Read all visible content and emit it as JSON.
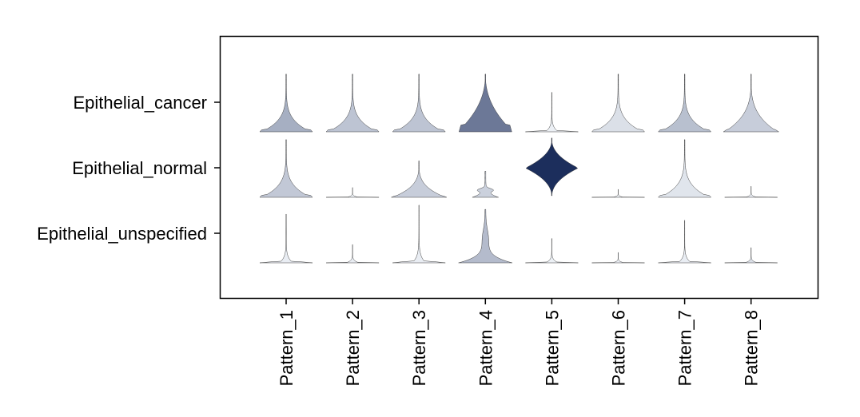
{
  "chart_data": {
    "type": "violin",
    "title": "",
    "xlabel": "",
    "ylabel": "",
    "categories": [
      "Pattern_1",
      "Pattern_2",
      "Pattern_3",
      "Pattern_4",
      "Pattern_5",
      "Pattern_6",
      "Pattern_7",
      "Pattern_8"
    ],
    "rows": [
      "Epithelial_cancer",
      "Epithelial_normal",
      "Epithelial_unspecified"
    ],
    "colorscale": {
      "low": "#f4f7fb",
      "high": "#1c2e5c"
    },
    "grid": false,
    "legend": "none",
    "cells": [
      [
        {
          "intensity": 0.3,
          "top": 0.95,
          "width_scale": 1.0,
          "shape": "spiky"
        },
        {
          "intensity": 0.2,
          "top": 0.95,
          "width_scale": 1.0,
          "shape": "spiky"
        },
        {
          "intensity": 0.2,
          "top": 0.95,
          "width_scale": 1.0,
          "shape": "spiky"
        },
        {
          "intensity": 0.58,
          "top": 0.95,
          "width_scale": 1.0,
          "shape": "fat"
        },
        {
          "intensity": 0.02,
          "top": 0.65,
          "width_scale": 1.0,
          "shape": "flat"
        },
        {
          "intensity": 0.08,
          "top": 0.95,
          "width_scale": 1.0,
          "shape": "spiky"
        },
        {
          "intensity": 0.22,
          "top": 0.95,
          "width_scale": 1.0,
          "shape": "spiky"
        },
        {
          "intensity": 0.16,
          "top": 0.95,
          "width_scale": 1.0,
          "shape": "round"
        }
      ],
      [
        {
          "intensity": 0.18,
          "top": 0.95,
          "width_scale": 1.0,
          "shape": "spiky"
        },
        {
          "intensity": 0.02,
          "top": 0.16,
          "width_scale": 1.0,
          "shape": "flat"
        },
        {
          "intensity": 0.16,
          "top": 0.6,
          "width_scale": 1.0,
          "shape": "round"
        },
        {
          "intensity": 0.14,
          "top": 0.43,
          "width_scale": 0.8,
          "shape": "bumpy"
        },
        {
          "intensity": 1.0,
          "top": 0.95,
          "width_scale": 1.0,
          "shape": "diamond"
        },
        {
          "intensity": 0.02,
          "top": 0.13,
          "width_scale": 1.0,
          "shape": "flat"
        },
        {
          "intensity": 0.06,
          "top": 0.95,
          "width_scale": 1.0,
          "shape": "spiky"
        },
        {
          "intensity": 0.03,
          "top": 0.18,
          "width_scale": 1.0,
          "shape": "flat"
        }
      ],
      [
        {
          "intensity": 0.03,
          "top": 0.8,
          "width_scale": 1.0,
          "shape": "flat"
        },
        {
          "intensity": 0.03,
          "top": 0.3,
          "width_scale": 1.0,
          "shape": "flat"
        },
        {
          "intensity": 0.03,
          "top": 0.95,
          "width_scale": 1.0,
          "shape": "flat"
        },
        {
          "intensity": 0.24,
          "top": 0.88,
          "width_scale": 1.0,
          "shape": "column"
        },
        {
          "intensity": 0.02,
          "top": 0.4,
          "width_scale": 1.0,
          "shape": "flat"
        },
        {
          "intensity": 0.03,
          "top": 0.17,
          "width_scale": 1.0,
          "shape": "flat"
        },
        {
          "intensity": 0.03,
          "top": 0.7,
          "width_scale": 1.0,
          "shape": "flat"
        },
        {
          "intensity": 0.08,
          "top": 0.25,
          "width_scale": 1.0,
          "shape": "flat"
        }
      ]
    ]
  }
}
